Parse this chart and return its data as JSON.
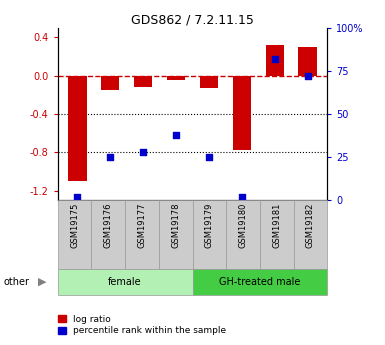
{
  "title": "GDS862 / 7.2.11.15",
  "samples": [
    "GSM19175",
    "GSM19176",
    "GSM19177",
    "GSM19178",
    "GSM19179",
    "GSM19180",
    "GSM19181",
    "GSM19182"
  ],
  "log_ratio": [
    -1.1,
    -0.15,
    -0.12,
    -0.05,
    -0.13,
    -0.78,
    0.32,
    0.3
  ],
  "percentile_rank": [
    2,
    25,
    28,
    38,
    25,
    2,
    82,
    72
  ],
  "groups": [
    {
      "label": "female",
      "indices": [
        0,
        1,
        2,
        3
      ],
      "color": "#b3f0b3"
    },
    {
      "label": "GH-treated male",
      "indices": [
        4,
        5,
        6,
        7
      ],
      "color": "#44cc44"
    }
  ],
  "ylim_left": [
    -1.3,
    0.5
  ],
  "ylim_right": [
    0,
    100
  ],
  "yticks_left": [
    -1.2,
    -0.8,
    -0.4,
    0.0,
    0.4
  ],
  "yticks_right": [
    0,
    25,
    50,
    75,
    100
  ],
  "bar_color": "#cc0000",
  "dot_color": "#0000cc",
  "hline_color": "#cc0000",
  "background_color": "#ffffff",
  "label_log_ratio": "log ratio",
  "label_percentile": "percentile rank within the sample",
  "other_label": "other",
  "tick_box_color": "#cccccc",
  "tick_box_edge": "#999999"
}
